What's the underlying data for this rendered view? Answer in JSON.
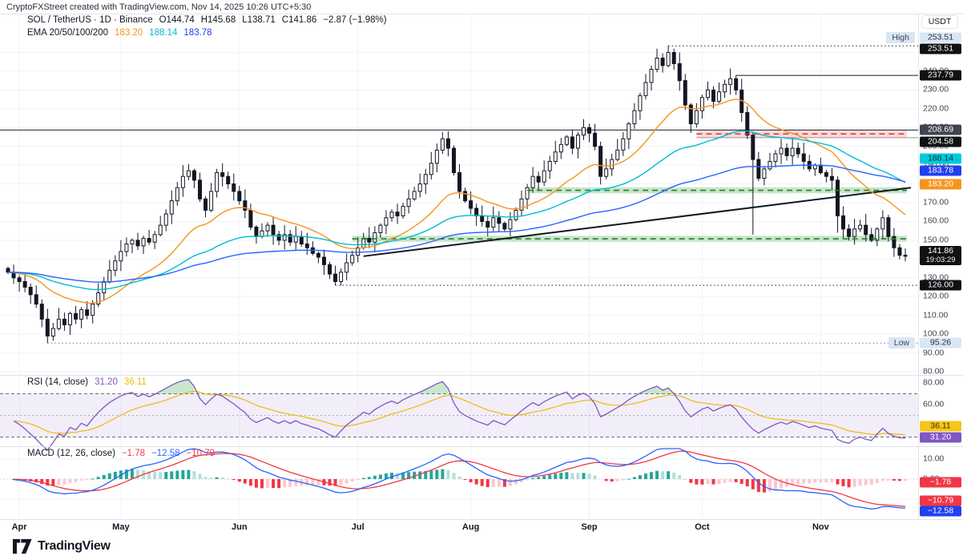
{
  "attribution": "CryptoFXStreet created with TradingView.com, Nov 14, 2025 10:26 UTC+5:30",
  "symbol_header": {
    "series": "SOL / TetherUS · 1D · Binance",
    "open": "O144.74",
    "high": "H145.68",
    "low": "L138.71",
    "close": "C141.86",
    "change": "−2.87 (−1.98%)"
  },
  "ema_header": {
    "label": "EMA 20/50/100/200",
    "values": [
      {
        "text": "183.20",
        "color": "#F7941D"
      },
      {
        "text": "188.14",
        "color": "#00BCD4"
      },
      {
        "text": "183.78",
        "color": "#2140EF"
      }
    ]
  },
  "rsi_header": {
    "label": "RSI (14, close)",
    "values": [
      {
        "text": "31.20",
        "color": "#7E57C2"
      },
      {
        "text": "36.11",
        "color": "#F0B90B"
      }
    ]
  },
  "macd_header": {
    "label": "MACD (12, 26, close)",
    "values": [
      {
        "text": "−1.78",
        "color": "#F23645"
      },
      {
        "text": "−12.58",
        "color": "#2962FF"
      },
      {
        "text": "−10.79",
        "color": "#F23645"
      }
    ]
  },
  "price_axis": {
    "currency": "USDT",
    "tick_min": 80,
    "tick_max": 250,
    "tick_step": 10
  },
  "rsi_axis_ticks": [
    {
      "text": "80.00",
      "value": 80
    },
    {
      "text": "60.00",
      "value": 60
    }
  ],
  "macd_axis_ticks": [
    {
      "text": "10.00",
      "value": 10
    },
    {
      "text": "0.00",
      "value": 0
    }
  ],
  "axis_badges": [
    {
      "pane": "main",
      "price": 253.51,
      "text": "253.51",
      "style": "light",
      "dy": -10
    },
    {
      "pane": "main",
      "price": 253.51,
      "text": "253.51",
      "style": "dark",
      "dy": 4
    },
    {
      "pane": "main",
      "price": 237.79,
      "text": "237.79",
      "style": "dark",
      "dy": 0
    },
    {
      "pane": "main",
      "price": 208.69,
      "text": "208.69",
      "style": "gray",
      "dy": 0
    },
    {
      "pane": "main",
      "price": 204.58,
      "text": "204.58",
      "style": "dark",
      "dy": 5
    },
    {
      "pane": "main",
      "price": 188.14,
      "text": "188.14",
      "style": "cyan",
      "dy": -12
    },
    {
      "pane": "main",
      "price": 183.78,
      "text": "183.78",
      "style": "blue",
      "dy": -8
    },
    {
      "pane": "main",
      "price": 183.2,
      "text": "183.20",
      "style": "orange",
      "dy": 8
    },
    {
      "pane": "main",
      "price": 141.86,
      "text": "141.86",
      "sub": "19:03:29",
      "style": "dark",
      "dy": 0
    },
    {
      "pane": "main",
      "price": 126.0,
      "text": "126.00",
      "style": "dark",
      "dy": 0
    },
    {
      "pane": "main",
      "price": 95.26,
      "text": "95.26",
      "style": "light",
      "dy": 0
    },
    {
      "pane": "rsi",
      "value": 36.11,
      "text": "36.11",
      "style": "yellow",
      "dy": -5
    },
    {
      "pane": "rsi",
      "value": 31.2,
      "text": "31.20",
      "style": "purple",
      "dy": 2
    },
    {
      "pane": "macd",
      "value": -1.78,
      "text": "−1.78",
      "style": "red",
      "dy": 0
    },
    {
      "pane": "macd",
      "value": -10.79,
      "text": "−10.79",
      "style": "red",
      "dy": 0
    },
    {
      "pane": "macd",
      "value": -12.58,
      "text": "−12.58",
      "style": "blue",
      "dy": 9
    }
  ],
  "side_markers": [
    {
      "text": "High",
      "price": 253.51,
      "dy": -10
    },
    {
      "text": "Low",
      "price": 95.26,
      "dy": 0
    }
  ],
  "footer": {
    "brand": "TradingView"
  },
  "colors": {
    "background": "#ffffff",
    "text": "#131722",
    "muted_text": "#3E4450",
    "grid": "#F0F3FA",
    "separator": "#E0E3EB",
    "candle_up_fill": "#ffffff",
    "candle_down_fill": "#131722",
    "candle_outline": "#131722",
    "rsi_line": "#7E57C2",
    "rsi_ma": "#F0B90B",
    "rsi_band_fill": "rgba(126,87,194,0.10)",
    "rsi_overbought_fill": "rgba(76,175,80,0.30)",
    "rsi_dash": "#6A6D78",
    "rsi_mid_dash": "#A9ACB5",
    "macd_line": "#2962FF",
    "macd_signal": "#F23645",
    "macd_zero": "#B2B5BE",
    "hist_grow_up": "#26A69A",
    "hist_fall_up": "#B2DFDB",
    "hist_grow_down": "#F23645",
    "hist_fall_down": "#FBC8CD",
    "trendline": "#131722"
  },
  "chart_data": {
    "type": "candlestick+indicators",
    "symbol": "SOL/USDT",
    "exchange": "Binance",
    "interval": "1D",
    "quote": {
      "open": 144.74,
      "high": 145.68,
      "low": 138.71,
      "close": 141.86,
      "change": -2.87,
      "change_pct": -1.98,
      "countdown": "19:03:29"
    },
    "scale": {
      "min": 80,
      "max": 260
    },
    "months": [
      "Apr",
      "May",
      "Jun",
      "Jul",
      "Aug",
      "Sep",
      "Oct",
      "Nov"
    ],
    "month_start_indices": [
      2,
      20,
      41,
      62,
      82,
      103,
      123,
      144
    ],
    "candles": {
      "closes": [
        133,
        130,
        128,
        125,
        121,
        116,
        108,
        99,
        103,
        108,
        105,
        111,
        108,
        113,
        110,
        116,
        122,
        128,
        134,
        139,
        144,
        148,
        150,
        147,
        151,
        149,
        153,
        158,
        164,
        171,
        178,
        184,
        187,
        182,
        172,
        166,
        176,
        186,
        184,
        180,
        176,
        171,
        166,
        157,
        152,
        155,
        158,
        153,
        150,
        153,
        149,
        152,
        148,
        146,
        143,
        141,
        137,
        132,
        128,
        133,
        138,
        142,
        146,
        151,
        149,
        154,
        158,
        162,
        165,
        163,
        168,
        172,
        176,
        180,
        185,
        191,
        198,
        204,
        199,
        186,
        176,
        171,
        167,
        163,
        160,
        157,
        162,
        159,
        156,
        161,
        166,
        172,
        178,
        184,
        181,
        187,
        192,
        197,
        201,
        205,
        199,
        206,
        210,
        207,
        200,
        184,
        188,
        193,
        198,
        204,
        212,
        219,
        227,
        234,
        241,
        247,
        243,
        250,
        244,
        235,
        222,
        212,
        219,
        226,
        230,
        224,
        229,
        233,
        236,
        230,
        218,
        206,
        193,
        183,
        188,
        192,
        196,
        199,
        195,
        199,
        196,
        192,
        188,
        190,
        186,
        184,
        182,
        163,
        156,
        152,
        156,
        158,
        153,
        150,
        156,
        162,
        152,
        146,
        142,
        141.86
      ]
    },
    "extremes": [
      {
        "index": 7,
        "low": 95.26
      },
      {
        "index": 58,
        "low": 126.0
      },
      {
        "index": 77,
        "high": 207.5
      },
      {
        "index": 117,
        "high": 253.51
      },
      {
        "index": 129,
        "high": 237.79
      },
      {
        "index": 132,
        "high": 207.5,
        "low": 153.0
      },
      {
        "index": 147,
        "low": 154.0
      },
      {
        "index": 159,
        "high": 145.68,
        "low": 138.71
      }
    ],
    "overlays": {
      "emas": [
        {
          "period": 20,
          "color": "#F7941D",
          "last_label": "183.20"
        },
        {
          "period": 50,
          "color": "#00BCD4",
          "last_label": "188.14"
        },
        {
          "period": 100,
          "color": "#2962FF",
          "last_label": "183.78"
        }
      ]
    },
    "levels": [
      {
        "price": 253.51,
        "from_index": 117,
        "style": "dotted",
        "color": "#131722"
      },
      {
        "price": 237.79,
        "from_index": 129,
        "style": "solid",
        "color": "#131722"
      },
      {
        "price": 208.69,
        "from_index": 0,
        "style": "solid",
        "color": "#131722"
      },
      {
        "price": 204.58,
        "from_index": 122,
        "style": "solid",
        "color": "#9598A1"
      },
      {
        "price": 126.0,
        "from_index": 58,
        "style": "dotted",
        "color": "#131722"
      },
      {
        "price": 95.26,
        "from_index": 7,
        "style": "dotted",
        "color": "#787B86"
      }
    ],
    "zones": [
      {
        "type": "supply",
        "from_price": 204.58,
        "to_price": 208.69,
        "from_index": 122,
        "fill": "rgba(239,83,80,0.22)",
        "line_color": "#E53935",
        "line_price": 206.6
      },
      {
        "type": "demand",
        "from_price": 175.0,
        "to_price": 178.2,
        "from_index": 92,
        "fill": "rgba(129,199,132,0.45)",
        "line_color": "#2E7D32",
        "line_price": 176.6
      },
      {
        "type": "demand",
        "from_price": 149.2,
        "to_price": 152.4,
        "from_index": 61,
        "fill": "rgba(129,199,132,0.45)",
        "line_color": "#2E7D32",
        "line_price": 150.8
      }
    ],
    "trendline": {
      "from_index": 63,
      "from_price": 141.5,
      "to_index": 160,
      "to_price": 178,
      "color": "#131722",
      "width": 2
    },
    "rsi": {
      "period": 14,
      "overbought": 70,
      "middle": 50,
      "oversold": 30
    },
    "macd": {
      "fast": 12,
      "slow": 26,
      "signal": 9
    }
  }
}
